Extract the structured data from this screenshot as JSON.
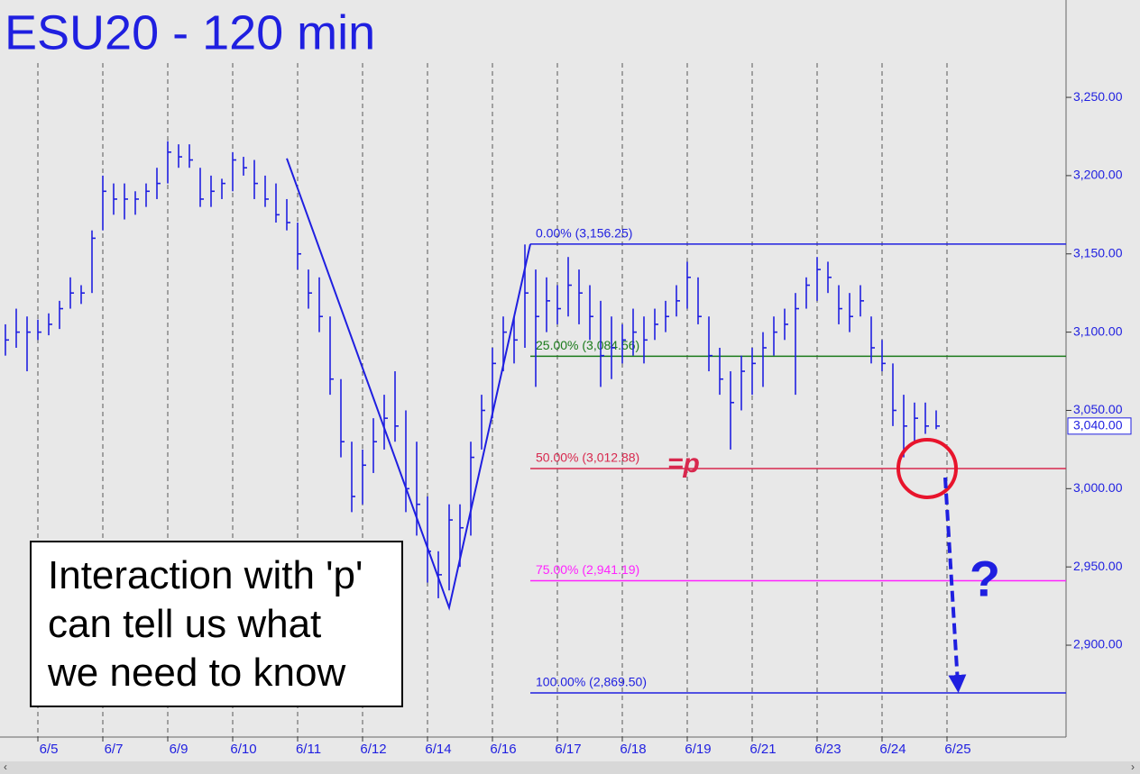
{
  "chart_data": {
    "type": "ohlc",
    "title": "ESU20 - 120 min",
    "color": "#1f1fe0",
    "xlim": [
      -0.5,
      98
    ],
    "ylim": [
      2841.3,
      3312.2
    ],
    "xticks": [
      {
        "value": 3,
        "label": "6/5"
      },
      {
        "value": 9,
        "label": "6/7"
      },
      {
        "value": 15,
        "label": "6/9"
      },
      {
        "value": 21,
        "label": "6/10"
      },
      {
        "value": 27,
        "label": "6/11"
      },
      {
        "value": 33,
        "label": "6/12"
      },
      {
        "value": 39,
        "label": "6/14"
      },
      {
        "value": 45,
        "label": "6/16"
      },
      {
        "value": 51,
        "label": "6/17"
      },
      {
        "value": 57,
        "label": "6/18"
      },
      {
        "value": 63,
        "label": "6/19"
      },
      {
        "value": 69,
        "label": "6/21"
      },
      {
        "value": 75,
        "label": "6/23"
      },
      {
        "value": 81,
        "label": "6/24"
      },
      {
        "value": 87,
        "label": "6/25"
      }
    ],
    "yticks": [
      {
        "value": 2900,
        "label": "2,900.00"
      },
      {
        "value": 2950,
        "label": "2,950.00"
      },
      {
        "value": 3000,
        "label": "3,000.00"
      },
      {
        "value": 3050,
        "label": "3,050.00"
      },
      {
        "value": 3100,
        "label": "3,100.00"
      },
      {
        "value": 3150,
        "label": "3,150.00"
      },
      {
        "value": 3200,
        "label": "3,200.00"
      },
      {
        "value": 3250,
        "label": "3,250.00"
      }
    ],
    "x": [
      0,
      1,
      2,
      3,
      4,
      5,
      6,
      7,
      8,
      9,
      10,
      11,
      12,
      13,
      14,
      15,
      16,
      17,
      18,
      19,
      20,
      21,
      22,
      23,
      24,
      25,
      26,
      27,
      28,
      29,
      30,
      31,
      32,
      33,
      34,
      35,
      36,
      37,
      38,
      39,
      40,
      41,
      42,
      43,
      44,
      45,
      46,
      47,
      48,
      49,
      50,
      51,
      52,
      53,
      54,
      55,
      56,
      57,
      58,
      59,
      60,
      61,
      62,
      63,
      64,
      65,
      66,
      67,
      68,
      69,
      70,
      71,
      72,
      73,
      74,
      75,
      76,
      77,
      78,
      79,
      80,
      81,
      82,
      83,
      84,
      85,
      86
    ],
    "high": [
      3105,
      3115,
      3110,
      3108,
      3112,
      3120,
      3135,
      3130,
      3165,
      3200,
      3195,
      3195,
      3190,
      3195,
      3205,
      3222,
      3220,
      3220,
      3205,
      3200,
      3198,
      3215,
      3212,
      3210,
      3200,
      3195,
      3185,
      3170,
      3140,
      3135,
      3110,
      3070,
      3030,
      3025,
      3045,
      3060,
      3075,
      3050,
      3030,
      2995,
      2960,
      2990,
      2990,
      3030,
      3060,
      3090,
      3110,
      3110,
      3156,
      3140,
      3135,
      3130,
      3148,
      3140,
      3130,
      3120,
      3110,
      3105,
      3115,
      3110,
      3115,
      3120,
      3130,
      3145,
      3135,
      3110,
      3090,
      3075,
      3085,
      3090,
      3100,
      3110,
      3115,
      3125,
      3135,
      3148,
      3145,
      3130,
      3125,
      3130,
      3110,
      3095,
      3080,
      3060,
      3055,
      3055,
      3050
    ],
    "low": [
      3085,
      3090,
      3075,
      3095,
      3098,
      3102,
      3115,
      3118,
      3125,
      3165,
      3175,
      3172,
      3175,
      3180,
      3185,
      3195,
      3205,
      3205,
      3180,
      3180,
      3185,
      3190,
      3200,
      3185,
      3180,
      3170,
      3165,
      3140,
      3115,
      3100,
      3060,
      3020,
      2985,
      2990,
      3010,
      3025,
      3030,
      2985,
      2970,
      2940,
      2930,
      2935,
      2950,
      2970,
      3025,
      3045,
      3075,
      3080,
      3090,
      3065,
      3100,
      3105,
      3110,
      3105,
      3095,
      3065,
      3070,
      3080,
      3085,
      3080,
      3095,
      3100,
      3110,
      3115,
      3105,
      3075,
      3060,
      3025,
      3050,
      3060,
      3065,
      3085,
      3095,
      3060,
      3115,
      3120,
      3125,
      3105,
      3100,
      3110,
      3080,
      3075,
      3040,
      3020,
      3030,
      3035,
      3038
    ],
    "close": [
      3095,
      3100,
      3100,
      3100,
      3105,
      3115,
      3125,
      3125,
      3160,
      3190,
      3185,
      3185,
      3185,
      3190,
      3195,
      3215,
      3212,
      3210,
      3185,
      3190,
      3195,
      3210,
      3205,
      3195,
      3185,
      3175,
      3170,
      3150,
      3125,
      3110,
      3070,
      3030,
      2995,
      3015,
      3030,
      3045,
      3040,
      3000,
      2990,
      2960,
      2945,
      2980,
      2975,
      3020,
      3050,
      3080,
      3100,
      3095,
      3125,
      3110,
      3120,
      3115,
      3130,
      3125,
      3110,
      3085,
      3090,
      3095,
      3100,
      3095,
      3105,
      3110,
      3120,
      3135,
      3110,
      3085,
      3070,
      3055,
      3075,
      3080,
      3090,
      3100,
      3105,
      3115,
      3130,
      3140,
      3135,
      3115,
      3110,
      3120,
      3090,
      3080,
      3050,
      3040,
      3045,
      3040,
      3040
    ],
    "pattern": {
      "x": [
        26,
        41,
        48.5
      ],
      "y": [
        3211,
        2924,
        3156.25
      ]
    },
    "fib_levels": [
      {
        "level": 3156.25,
        "label": "0.00% (3,156.25)",
        "color": "#1f1fe0"
      },
      {
        "level": 3084.56,
        "label": "25.00% (3,084.56)",
        "color": "#1a7a1a"
      },
      {
        "level": 3012.88,
        "label": "50.00% (3,012.88)",
        "color": "#d8284e"
      },
      {
        "level": 2941.19,
        "label": "75.00% (2,941.19)",
        "color": "#ff22ff"
      },
      {
        "level": 2869.5,
        "label": "100.00% (2,869.50)",
        "color": "#1f1fe0"
      }
    ],
    "p_label": "=p",
    "question": "?",
    "last_price": {
      "value": 3040,
      "label": "3,040.00"
    },
    "note": [
      "Interaction with 'p'",
      "can tell us what",
      "we need to know"
    ]
  }
}
